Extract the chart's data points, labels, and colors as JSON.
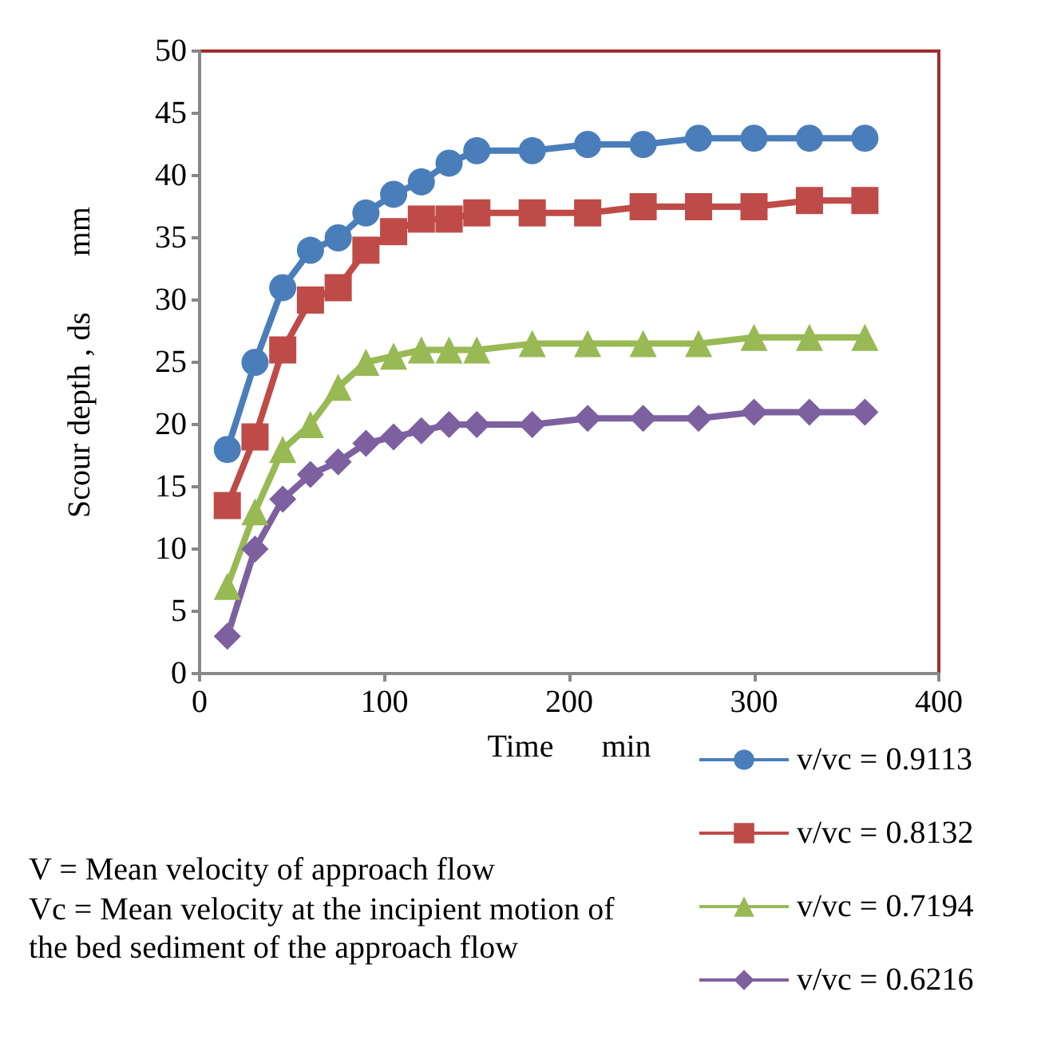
{
  "chart_data": {
    "type": "line",
    "xlabel": "Time      min",
    "ylabel": "Scour depth , ds       mm",
    "x": [
      15,
      30,
      45,
      60,
      75,
      90,
      105,
      120,
      135,
      150,
      180,
      210,
      240,
      270,
      300,
      330,
      360
    ],
    "series": [
      {
        "name": "v/vc = 0.9113",
        "color": "#4a7ebb",
        "marker": "circle",
        "values": [
          18,
          25,
          31,
          34,
          35,
          37,
          38.5,
          39.5,
          41,
          42,
          42,
          42.5,
          42.5,
          43,
          43,
          43,
          43
        ]
      },
      {
        "name": "v/vc = 0.8132",
        "color": "#be4b48",
        "marker": "square",
        "values": [
          13.5,
          19,
          26,
          30,
          31,
          34,
          35.5,
          36.5,
          36.5,
          37,
          37,
          37,
          37.5,
          37.5,
          37.5,
          38,
          38
        ]
      },
      {
        "name": "v/vc = 0.7194",
        "color": "#98b954",
        "marker": "triangle",
        "values": [
          7,
          13,
          18,
          20,
          23,
          25,
          25.5,
          26,
          26,
          26,
          26.5,
          26.5,
          26.5,
          26.5,
          27,
          27,
          27
        ]
      },
      {
        "name": "v/vc = 0.6216",
        "color": "#7d60a0",
        "marker": "diamond",
        "values": [
          3,
          10,
          14,
          16,
          17,
          18.5,
          19,
          19.5,
          20,
          20,
          20,
          20.5,
          20.5,
          20.5,
          21,
          21,
          21
        ]
      }
    ],
    "xlim": [
      0,
      400
    ],
    "xticks": [
      0,
      100,
      200,
      300,
      400
    ],
    "ylim": [
      0,
      50
    ],
    "yticks": [
      0,
      5,
      10,
      15,
      20,
      25,
      30,
      35,
      40,
      45,
      50
    ],
    "grid": false,
    "legend": "bottom right",
    "annotations": [
      "V = Mean velocity of approach flow",
      "Vc = Mean velocity at the incipient motion of the bed sediment of the approach flow"
    ]
  }
}
